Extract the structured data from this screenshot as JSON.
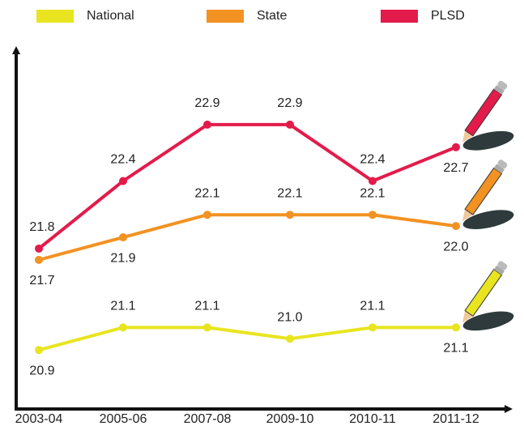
{
  "chart_data": {
    "type": "line",
    "categories": [
      "2003-04",
      "2005-06",
      "2007-08",
      "2009-10",
      "2010-11",
      "2011-12"
    ],
    "series": [
      {
        "name": "National",
        "color": "#e8e520",
        "values": [
          20.9,
          21.1,
          21.1,
          21.0,
          21.1,
          21.1
        ],
        "value_labels": [
          "20.9",
          "21.1",
          "21.1",
          "21.0",
          "21.1",
          "21.1"
        ]
      },
      {
        "name": "State",
        "color": "#f29222",
        "values": [
          21.7,
          21.9,
          22.1,
          22.1,
          22.1,
          22.0
        ],
        "value_labels": [
          "21.7",
          "21.9",
          "22.1",
          "22.1",
          "22.1",
          "22.0"
        ]
      },
      {
        "name": "PLSD",
        "color": "#e31b4b",
        "values": [
          21.8,
          22.4,
          22.9,
          22.9,
          22.4,
          22.7
        ],
        "value_labels": [
          "21.8",
          "22.4",
          "22.9",
          "22.9",
          "22.4",
          "22.7"
        ]
      }
    ],
    "ylim": [
      20.7,
      23.0
    ]
  }
}
